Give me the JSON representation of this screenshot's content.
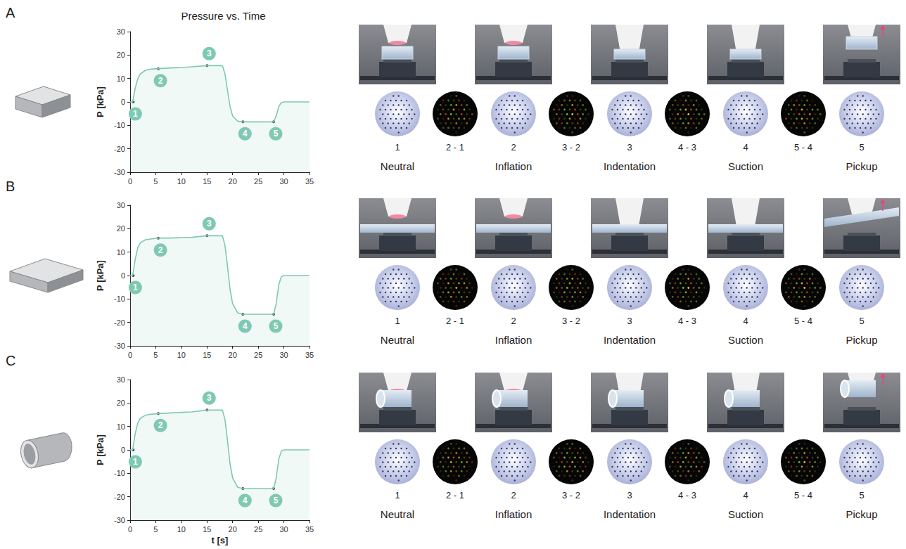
{
  "title": "Pressure vs. Time",
  "stages": [
    "Neutral",
    "Inflation",
    "Indentation",
    "Suction",
    "Pickup"
  ],
  "frame_labels": [
    "1",
    "2 - 1",
    "2",
    "3 - 2",
    "3",
    "4 - 3",
    "4",
    "5 - 4",
    "5"
  ],
  "chart_data": [
    {
      "panel": "A",
      "type": "line",
      "y_label": "P [kPa]",
      "xlim": [
        0,
        35
      ],
      "xticks": [
        0,
        5,
        10,
        15,
        20,
        25,
        30,
        35
      ],
      "ylim": [
        -30,
        30
      ],
      "yticks": [
        -30,
        -20,
        -10,
        0,
        10,
        20,
        30
      ],
      "grid": false,
      "color": "#7fc9b3",
      "x": [
        0,
        0.5,
        1,
        1.5,
        2,
        3,
        4,
        5.5,
        8,
        10,
        12,
        15,
        17,
        18,
        18.5,
        19,
        19.5,
        20,
        21,
        22,
        25,
        28,
        28.5,
        29,
        29.5,
        30,
        35
      ],
      "values": [
        0,
        0,
        6,
        10,
        12,
        13.5,
        14,
        14.2,
        14.5,
        14.7,
        15,
        15.5,
        15.5,
        15.5,
        12,
        5,
        -2,
        -6,
        -8.2,
        -8.5,
        -8.5,
        -8.5,
        -6,
        -2,
        -0.3,
        0,
        0
      ],
      "annotations": [
        {
          "text": "1",
          "x": 0.6,
          "y": 0
        },
        {
          "text": "2",
          "x": 5.5,
          "y": 14.2
        },
        {
          "text": "3",
          "x": 15,
          "y": 15.5
        },
        {
          "text": "4",
          "x": 22,
          "y": -8.5
        },
        {
          "text": "5",
          "x": 28,
          "y": -8.5
        }
      ]
    },
    {
      "panel": "B",
      "type": "line",
      "y_label": "P [kPa]",
      "xlim": [
        0,
        35
      ],
      "xticks": [
        0,
        5,
        10,
        15,
        20,
        25,
        30,
        35
      ],
      "ylim": [
        -30,
        30
      ],
      "yticks": [
        -30,
        -20,
        -10,
        0,
        10,
        20,
        30
      ],
      "grid": false,
      "color": "#7fc9b3",
      "x": [
        0,
        0.5,
        1,
        1.5,
        2,
        3,
        4,
        5.5,
        8,
        10,
        12,
        15,
        17,
        18,
        18.5,
        19,
        19.5,
        20,
        21,
        22,
        25,
        28,
        28.5,
        29,
        29.5,
        30,
        35
      ],
      "values": [
        0,
        0,
        7,
        12,
        14,
        15.3,
        15.6,
        16,
        16,
        16.2,
        16.3,
        17,
        17,
        17,
        13,
        4,
        -6,
        -12,
        -16,
        -16.5,
        -16.5,
        -16.5,
        -12,
        -4,
        -0.5,
        0,
        0
      ],
      "annotations": [
        {
          "text": "1",
          "x": 0.6,
          "y": 0
        },
        {
          "text": "2",
          "x": 5.5,
          "y": 16
        },
        {
          "text": "3",
          "x": 15,
          "y": 17
        },
        {
          "text": "4",
          "x": 22,
          "y": -16.5
        },
        {
          "text": "5",
          "x": 28,
          "y": -16.5
        }
      ]
    },
    {
      "panel": "C",
      "type": "line",
      "y_label": "P [kPa]",
      "x_label": "t [s]",
      "xlim": [
        0,
        35
      ],
      "xticks": [
        0,
        5,
        10,
        15,
        20,
        25,
        30,
        35
      ],
      "ylim": [
        -30,
        30
      ],
      "yticks": [
        -30,
        -20,
        -10,
        0,
        10,
        20,
        30
      ],
      "grid": false,
      "color": "#7fc9b3",
      "x": [
        0,
        0.5,
        1,
        1.5,
        2,
        3,
        4,
        5.5,
        8,
        10,
        12,
        15,
        17,
        18,
        18.5,
        19,
        19.5,
        20,
        21,
        22,
        25,
        28,
        28.5,
        29,
        29.5,
        30,
        35
      ],
      "values": [
        0,
        0,
        7,
        11.5,
        13.5,
        14.8,
        15.2,
        15.5,
        15.8,
        16,
        16.2,
        17,
        17,
        17,
        13,
        4,
        -6,
        -12,
        -16,
        -16.5,
        -16.5,
        -16.5,
        -12,
        -4,
        -0.5,
        0,
        0
      ],
      "annotations": [
        {
          "text": "1",
          "x": 0.6,
          "y": 0
        },
        {
          "text": "2",
          "x": 5.5,
          "y": 15.5
        },
        {
          "text": "3",
          "x": 15,
          "y": 17
        },
        {
          "text": "4",
          "x": 22,
          "y": -16.5
        },
        {
          "text": "5",
          "x": 28,
          "y": -16.5
        }
      ]
    }
  ]
}
